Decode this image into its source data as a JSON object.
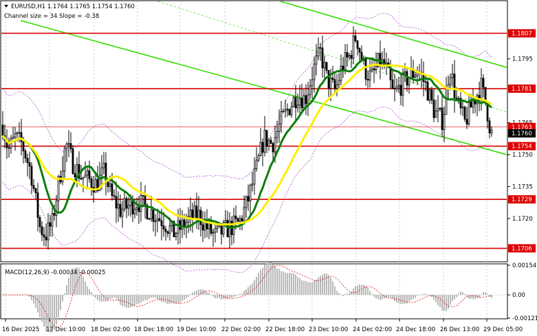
{
  "header": {
    "symbol_line": "EURUSD,H1  1.1764 1.1765 1.1754 1.1760",
    "channel_line": "Channel size = 34 Slope = -0.38"
  },
  "macd": {
    "label": "MACD(12,26,9) -0.00034 -0.00025",
    "ticks": [
      "0.00154",
      "0.00",
      "-0.00121"
    ]
  },
  "colors": {
    "candle": "#000000",
    "ma_fast": "#0a7d0a",
    "ma_slow": "#ffee00",
    "channel": "#33dd00",
    "level": "#dd0000",
    "bollinger": "#aa44cc",
    "macd_hist": "#b8b8b8",
    "macd_signal": "#dd0000",
    "price_tag": "#000000"
  },
  "chart_data": {
    "type": "candlestick",
    "symbol": "EURUSD",
    "timeframe": "H1",
    "ylim": [
      1.17,
      1.1822
    ],
    "y_ticks": [
      "1.1795",
      "1.1765",
      "1.1750",
      "1.1735",
      "1.1720"
    ],
    "x_labels": [
      "16 Dec 2025",
      "17 Dec 10:00",
      "18 Dec 02:00",
      "18 Dec 18:00",
      "19 Dec 10:00",
      "22 Dec 02:00",
      "22 Dec 18:00",
      "23 Dec 10:00",
      "24 Dec 02:00",
      "24 Dec 18:00",
      "26 Dec 13:00",
      "29 Dec 05:00"
    ],
    "levels": [
      {
        "label": "1.1807",
        "value": 1.1807
      },
      {
        "label": "1.1781",
        "value": 1.1781
      },
      {
        "label": "1.1754",
        "value": 1.1754
      },
      {
        "label": "1.1729",
        "value": 1.1729
      },
      {
        "label": "1.1706",
        "value": 1.1706
      }
    ],
    "current_price": {
      "label": "1.1760",
      "value": 1.176
    },
    "ask_price": {
      "label": "1.1763",
      "value": 1.1763
    },
    "ohlc_last": {
      "open": 1.1764,
      "high": 1.1765,
      "low": 1.1754,
      "close": 1.176
    },
    "channel": {
      "size": 34,
      "slope": -0.38
    }
  }
}
